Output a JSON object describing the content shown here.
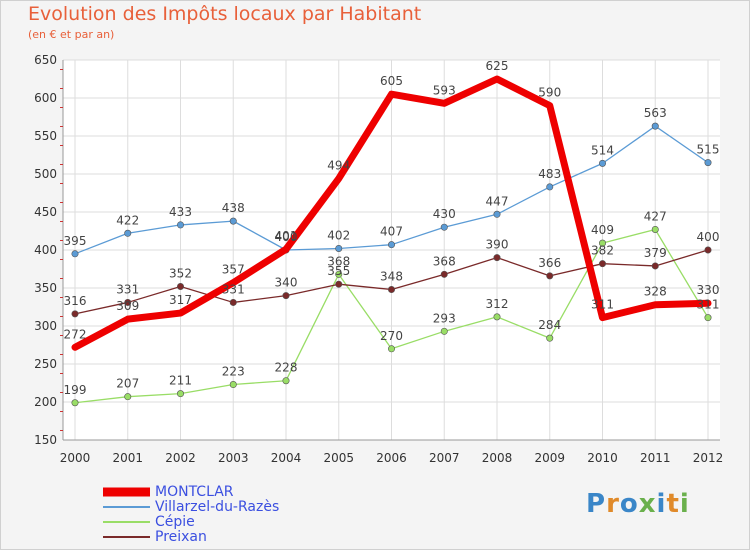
{
  "title": "Evolution des Impôts locaux par Habitant",
  "subtitle": "(en € et par an)",
  "logo": "Proxiti",
  "chart_data": {
    "type": "line",
    "x": [
      "2000",
      "2001",
      "2002",
      "2003",
      "2004",
      "2005",
      "2006",
      "2007",
      "2008",
      "2009",
      "2010",
      "2011",
      "2012"
    ],
    "ylim": [
      150,
      650
    ],
    "yticks": [
      150,
      200,
      250,
      300,
      350,
      400,
      450,
      500,
      550,
      600,
      650
    ],
    "grid": true,
    "legend_position": "bottom-left",
    "series": [
      {
        "name": "MONTCLAR",
        "color": "#ee0000",
        "values": [
          272,
          309,
          317,
          357,
          401,
          494,
          605,
          593,
          625,
          590,
          311,
          328,
          330
        ]
      },
      {
        "name": "Villarzel-du-Razès",
        "color": "#5b9bd5",
        "values": [
          395,
          422,
          433,
          438,
          400,
          402,
          407,
          430,
          447,
          483,
          514,
          563,
          515
        ]
      },
      {
        "name": "Cépie",
        "color": "#99dd66",
        "values": [
          199,
          207,
          211,
          223,
          228,
          368,
          270,
          293,
          312,
          284,
          409,
          427,
          311
        ]
      },
      {
        "name": "Preixan",
        "color": "#7a2a2a",
        "values": [
          316,
          331,
          352,
          331,
          340,
          355,
          348,
          368,
          390,
          366,
          382,
          379,
          400
        ]
      }
    ]
  }
}
